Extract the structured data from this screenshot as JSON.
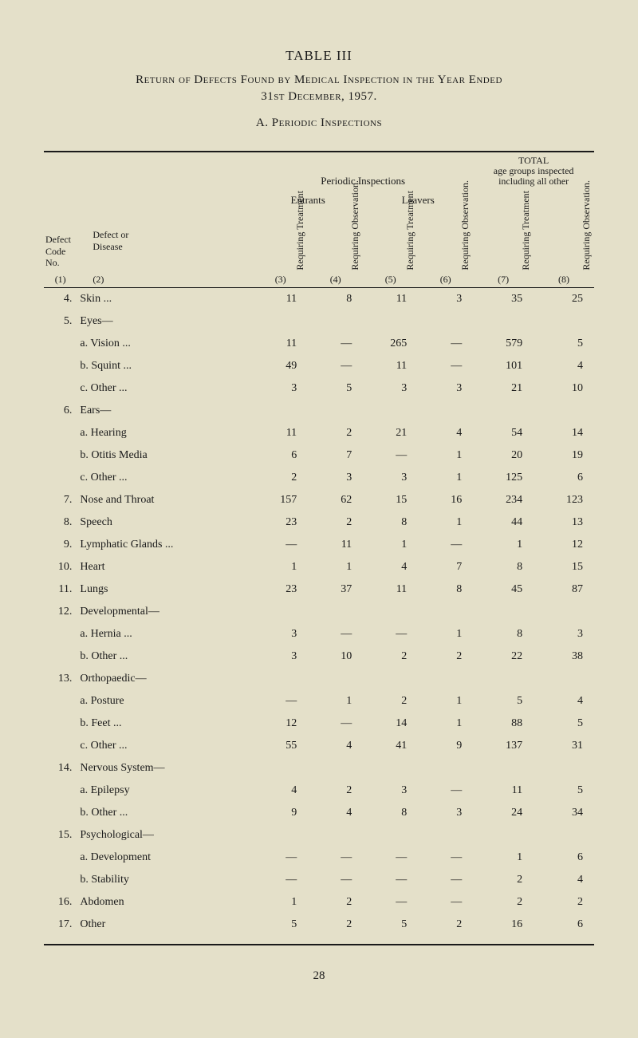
{
  "title": {
    "table_num": "TABLE III",
    "line1": "Return of Defects Found by Medical Inspection in the Year Ended",
    "line2": "31st December, 1957.",
    "subtitle": "A.  Periodic Inspections"
  },
  "headers": {
    "periodic": "Periodic Inspections",
    "total": "TOTAL",
    "total_sub": "age groups inspected including all other",
    "entrants": "Entrants",
    "leavers": "Leavers",
    "defect_code": "Defect Code No.",
    "defect_or_disease": "Defect or Disease",
    "req_treatment": "Requiring Treatment",
    "req_observation": "Requiring Observation.",
    "col_nums": [
      "(1)",
      "(2)",
      "(3)",
      "(4)",
      "(5)",
      "(6)",
      "(7)",
      "(8)"
    ]
  },
  "rows": [
    {
      "code": "4.",
      "label": "Skin ...",
      "indent": false,
      "c3": "11",
      "c4": "8",
      "c5": "11",
      "c6": "3",
      "c7": "35",
      "c8": "25"
    },
    {
      "code": "5.",
      "label": "Eyes—",
      "indent": false,
      "c3": "",
      "c4": "",
      "c5": "",
      "c6": "",
      "c7": "",
      "c8": ""
    },
    {
      "code": "",
      "label": "a. Vision ...",
      "indent": true,
      "c3": "11",
      "c4": "—",
      "c5": "265",
      "c6": "—",
      "c7": "579",
      "c8": "5"
    },
    {
      "code": "",
      "label": "b. Squint ...",
      "indent": true,
      "c3": "49",
      "c4": "—",
      "c5": "11",
      "c6": "—",
      "c7": "101",
      "c8": "4"
    },
    {
      "code": "",
      "label": "c. Other ...",
      "indent": true,
      "c3": "3",
      "c4": "5",
      "c5": "3",
      "c6": "3",
      "c7": "21",
      "c8": "10"
    },
    {
      "code": "6.",
      "label": "Ears—",
      "indent": false,
      "c3": "",
      "c4": "",
      "c5": "",
      "c6": "",
      "c7": "",
      "c8": ""
    },
    {
      "code": "",
      "label": "a. Hearing",
      "indent": true,
      "c3": "11",
      "c4": "2",
      "c5": "21",
      "c6": "4",
      "c7": "54",
      "c8": "14"
    },
    {
      "code": "",
      "label": "b. Otitis Media",
      "indent": true,
      "c3": "6",
      "c4": "7",
      "c5": "—",
      "c6": "1",
      "c7": "20",
      "c8": "19"
    },
    {
      "code": "",
      "label": "c. Other ...",
      "indent": true,
      "c3": "2",
      "c4": "3",
      "c5": "3",
      "c6": "1",
      "c7": "125",
      "c8": "6"
    },
    {
      "code": "7.",
      "label": "Nose and Throat",
      "indent": false,
      "c3": "157",
      "c4": "62",
      "c5": "15",
      "c6": "16",
      "c7": "234",
      "c8": "123"
    },
    {
      "code": "8.",
      "label": "Speech",
      "indent": false,
      "c3": "23",
      "c4": "2",
      "c5": "8",
      "c6": "1",
      "c7": "44",
      "c8": "13"
    },
    {
      "code": "9.",
      "label": "Lymphatic Glands ...",
      "indent": false,
      "c3": "—",
      "c4": "11",
      "c5": "1",
      "c6": "—",
      "c7": "1",
      "c8": "12"
    },
    {
      "code": "10.",
      "label": "Heart",
      "indent": false,
      "c3": "1",
      "c4": "1",
      "c5": "4",
      "c6": "7",
      "c7": "8",
      "c8": "15"
    },
    {
      "code": "11.",
      "label": "Lungs",
      "indent": false,
      "c3": "23",
      "c4": "37",
      "c5": "11",
      "c6": "8",
      "c7": "45",
      "c8": "87"
    },
    {
      "code": "12.",
      "label": "Developmental—",
      "indent": false,
      "c3": "",
      "c4": "",
      "c5": "",
      "c6": "",
      "c7": "",
      "c8": ""
    },
    {
      "code": "",
      "label": "a. Hernia ...",
      "indent": true,
      "c3": "3",
      "c4": "—",
      "c5": "—",
      "c6": "1",
      "c7": "8",
      "c8": "3"
    },
    {
      "code": "",
      "label": "b. Other ...",
      "indent": true,
      "c3": "3",
      "c4": "10",
      "c5": "2",
      "c6": "2",
      "c7": "22",
      "c8": "38"
    },
    {
      "code": "13.",
      "label": "Orthopaedic—",
      "indent": false,
      "c3": "",
      "c4": "",
      "c5": "",
      "c6": "",
      "c7": "",
      "c8": ""
    },
    {
      "code": "",
      "label": "a. Posture",
      "indent": true,
      "c3": "—",
      "c4": "1",
      "c5": "2",
      "c6": "1",
      "c7": "5",
      "c8": "4"
    },
    {
      "code": "",
      "label": "b. Feet ...",
      "indent": true,
      "c3": "12",
      "c4": "—",
      "c5": "14",
      "c6": "1",
      "c7": "88",
      "c8": "5"
    },
    {
      "code": "",
      "label": "c. Other ...",
      "indent": true,
      "c3": "55",
      "c4": "4",
      "c5": "41",
      "c6": "9",
      "c7": "137",
      "c8": "31"
    },
    {
      "code": "14.",
      "label": "Nervous System—",
      "indent": false,
      "c3": "",
      "c4": "",
      "c5": "",
      "c6": "",
      "c7": "",
      "c8": ""
    },
    {
      "code": "",
      "label": "a. Epilepsy",
      "indent": true,
      "c3": "4",
      "c4": "2",
      "c5": "3",
      "c6": "—",
      "c7": "11",
      "c8": "5"
    },
    {
      "code": "",
      "label": "b. Other ...",
      "indent": true,
      "c3": "9",
      "c4": "4",
      "c5": "8",
      "c6": "3",
      "c7": "24",
      "c8": "34"
    },
    {
      "code": "15.",
      "label": "Psychological—",
      "indent": false,
      "c3": "",
      "c4": "",
      "c5": "",
      "c6": "",
      "c7": "",
      "c8": ""
    },
    {
      "code": "",
      "label": "a. Development",
      "indent": true,
      "c3": "—",
      "c4": "—",
      "c5": "—",
      "c6": "—",
      "c7": "1",
      "c8": "6"
    },
    {
      "code": "",
      "label": "b. Stability",
      "indent": true,
      "c3": "—",
      "c4": "—",
      "c5": "—",
      "c6": "—",
      "c7": "2",
      "c8": "4"
    },
    {
      "code": "16.",
      "label": "Abdomen",
      "indent": false,
      "c3": "1",
      "c4": "2",
      "c5": "—",
      "c6": "—",
      "c7": "2",
      "c8": "2"
    },
    {
      "code": "17.",
      "label": "Other",
      "indent": false,
      "c3": "5",
      "c4": "2",
      "c5": "5",
      "c6": "2",
      "c7": "16",
      "c8": "6"
    }
  ],
  "page_num": "28",
  "colors": {
    "background": "#e4e0c9",
    "text": "#1a1a1a"
  }
}
